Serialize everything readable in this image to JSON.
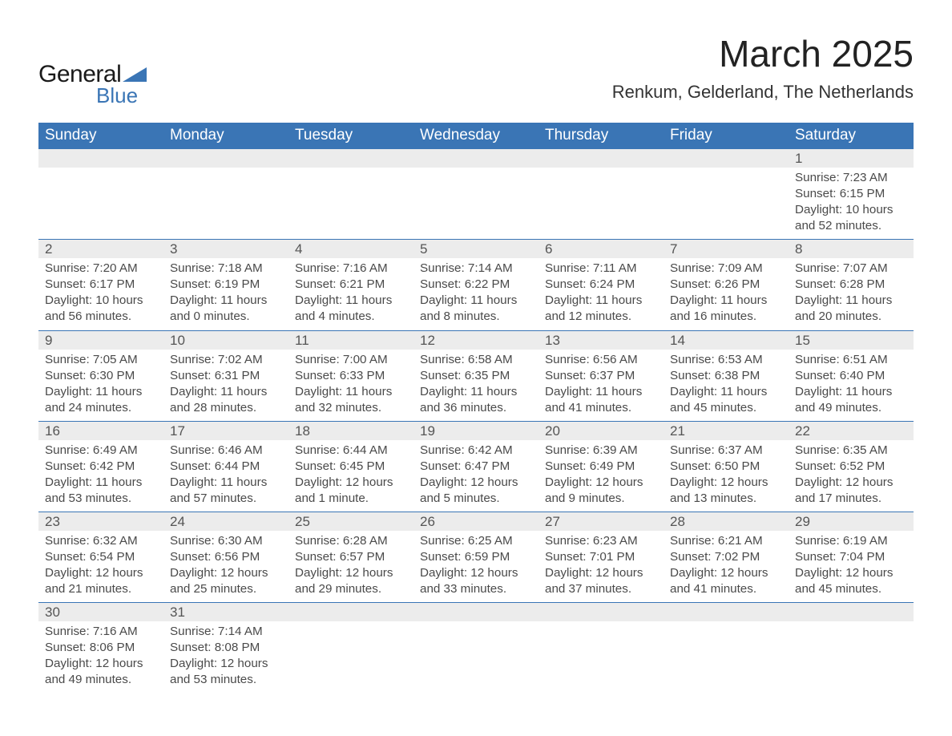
{
  "logo": {
    "part1": "General",
    "part2": "Blue",
    "triangle_color": "#3a75b5"
  },
  "title": "March 2025",
  "location": "Renkum, Gelderland, The Netherlands",
  "styling": {
    "header_bg": "#3a75b5",
    "header_text": "#ffffff",
    "daynum_bg": "#ececec",
    "row_divider": "#3a75b5",
    "body_text": "#4a4a4a",
    "title_fontsize": 46,
    "location_fontsize": 22,
    "header_fontsize": 19,
    "daynum_fontsize": 17,
    "cell_fontsize": 15.2
  },
  "day_headers": [
    "Sunday",
    "Monday",
    "Tuesday",
    "Wednesday",
    "Thursday",
    "Friday",
    "Saturday"
  ],
  "weeks": [
    [
      null,
      null,
      null,
      null,
      null,
      null,
      {
        "n": "1",
        "sunrise": "7:23 AM",
        "sunset": "6:15 PM",
        "daylight": "10 hours and 52 minutes."
      }
    ],
    [
      {
        "n": "2",
        "sunrise": "7:20 AM",
        "sunset": "6:17 PM",
        "daylight": "10 hours and 56 minutes."
      },
      {
        "n": "3",
        "sunrise": "7:18 AM",
        "sunset": "6:19 PM",
        "daylight": "11 hours and 0 minutes."
      },
      {
        "n": "4",
        "sunrise": "7:16 AM",
        "sunset": "6:21 PM",
        "daylight": "11 hours and 4 minutes."
      },
      {
        "n": "5",
        "sunrise": "7:14 AM",
        "sunset": "6:22 PM",
        "daylight": "11 hours and 8 minutes."
      },
      {
        "n": "6",
        "sunrise": "7:11 AM",
        "sunset": "6:24 PM",
        "daylight": "11 hours and 12 minutes."
      },
      {
        "n": "7",
        "sunrise": "7:09 AM",
        "sunset": "6:26 PM",
        "daylight": "11 hours and 16 minutes."
      },
      {
        "n": "8",
        "sunrise": "7:07 AM",
        "sunset": "6:28 PM",
        "daylight": "11 hours and 20 minutes."
      }
    ],
    [
      {
        "n": "9",
        "sunrise": "7:05 AM",
        "sunset": "6:30 PM",
        "daylight": "11 hours and 24 minutes."
      },
      {
        "n": "10",
        "sunrise": "7:02 AM",
        "sunset": "6:31 PM",
        "daylight": "11 hours and 28 minutes."
      },
      {
        "n": "11",
        "sunrise": "7:00 AM",
        "sunset": "6:33 PM",
        "daylight": "11 hours and 32 minutes."
      },
      {
        "n": "12",
        "sunrise": "6:58 AM",
        "sunset": "6:35 PM",
        "daylight": "11 hours and 36 minutes."
      },
      {
        "n": "13",
        "sunrise": "6:56 AM",
        "sunset": "6:37 PM",
        "daylight": "11 hours and 41 minutes."
      },
      {
        "n": "14",
        "sunrise": "6:53 AM",
        "sunset": "6:38 PM",
        "daylight": "11 hours and 45 minutes."
      },
      {
        "n": "15",
        "sunrise": "6:51 AM",
        "sunset": "6:40 PM",
        "daylight": "11 hours and 49 minutes."
      }
    ],
    [
      {
        "n": "16",
        "sunrise": "6:49 AM",
        "sunset": "6:42 PM",
        "daylight": "11 hours and 53 minutes."
      },
      {
        "n": "17",
        "sunrise": "6:46 AM",
        "sunset": "6:44 PM",
        "daylight": "11 hours and 57 minutes."
      },
      {
        "n": "18",
        "sunrise": "6:44 AM",
        "sunset": "6:45 PM",
        "daylight": "12 hours and 1 minute."
      },
      {
        "n": "19",
        "sunrise": "6:42 AM",
        "sunset": "6:47 PM",
        "daylight": "12 hours and 5 minutes."
      },
      {
        "n": "20",
        "sunrise": "6:39 AM",
        "sunset": "6:49 PM",
        "daylight": "12 hours and 9 minutes."
      },
      {
        "n": "21",
        "sunrise": "6:37 AM",
        "sunset": "6:50 PM",
        "daylight": "12 hours and 13 minutes."
      },
      {
        "n": "22",
        "sunrise": "6:35 AM",
        "sunset": "6:52 PM",
        "daylight": "12 hours and 17 minutes."
      }
    ],
    [
      {
        "n": "23",
        "sunrise": "6:32 AM",
        "sunset": "6:54 PM",
        "daylight": "12 hours and 21 minutes."
      },
      {
        "n": "24",
        "sunrise": "6:30 AM",
        "sunset": "6:56 PM",
        "daylight": "12 hours and 25 minutes."
      },
      {
        "n": "25",
        "sunrise": "6:28 AM",
        "sunset": "6:57 PM",
        "daylight": "12 hours and 29 minutes."
      },
      {
        "n": "26",
        "sunrise": "6:25 AM",
        "sunset": "6:59 PM",
        "daylight": "12 hours and 33 minutes."
      },
      {
        "n": "27",
        "sunrise": "6:23 AM",
        "sunset": "7:01 PM",
        "daylight": "12 hours and 37 minutes."
      },
      {
        "n": "28",
        "sunrise": "6:21 AM",
        "sunset": "7:02 PM",
        "daylight": "12 hours and 41 minutes."
      },
      {
        "n": "29",
        "sunrise": "6:19 AM",
        "sunset": "7:04 PM",
        "daylight": "12 hours and 45 minutes."
      }
    ],
    [
      {
        "n": "30",
        "sunrise": "7:16 AM",
        "sunset": "8:06 PM",
        "daylight": "12 hours and 49 minutes."
      },
      {
        "n": "31",
        "sunrise": "7:14 AM",
        "sunset": "8:08 PM",
        "daylight": "12 hours and 53 minutes."
      },
      null,
      null,
      null,
      null,
      null
    ]
  ],
  "labels": {
    "sunrise": "Sunrise: ",
    "sunset": "Sunset: ",
    "daylight": "Daylight: "
  }
}
